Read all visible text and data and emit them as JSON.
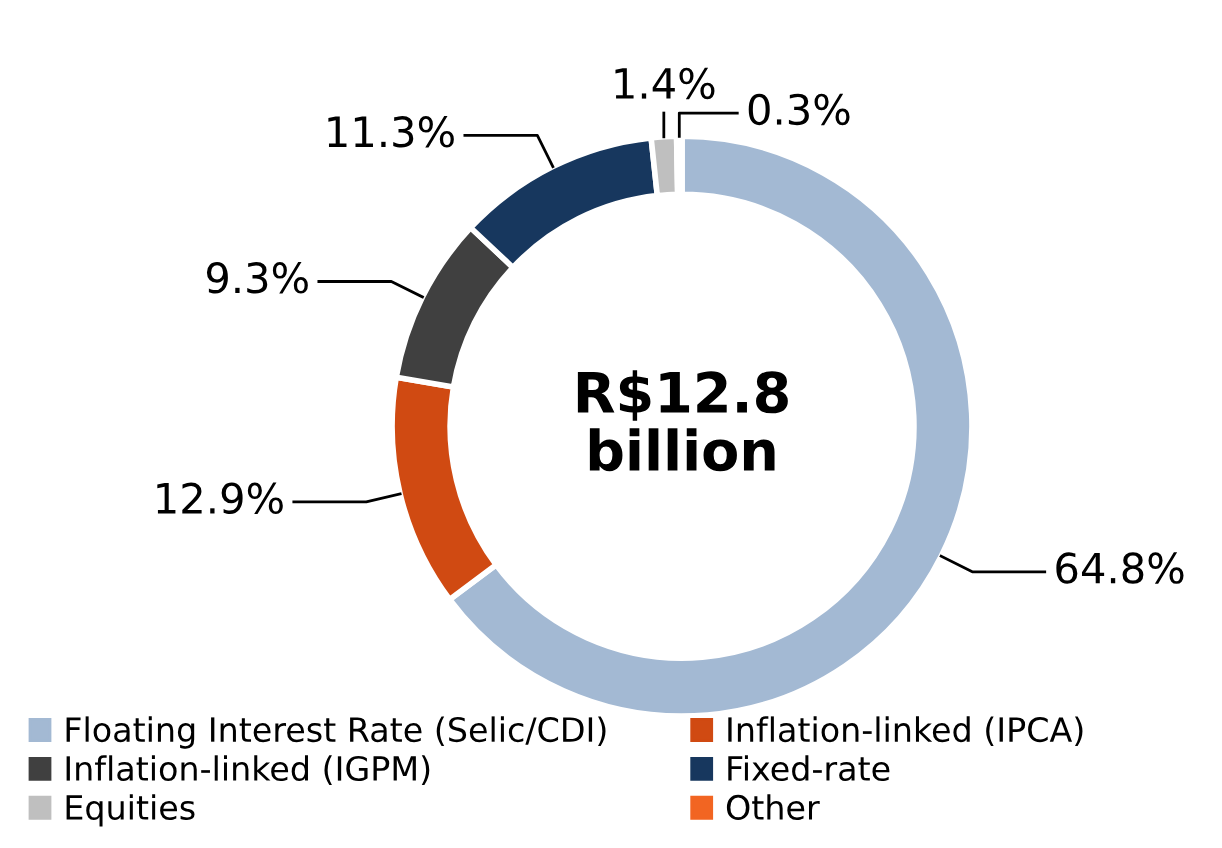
{
  "chart_data": {
    "type": "donut",
    "categories": [
      "Floating Interest Rate (Selic/CDI)",
      "Inflation-linked (IPCA)",
      "Inflation-linked (IGPM)",
      "Fixed-rate",
      "Equities",
      "Other"
    ],
    "values": [
      64.8,
      12.9,
      9.3,
      11.3,
      1.4,
      0.3
    ],
    "colors": [
      "#a3b9d3",
      "#d04a12",
      "#404040",
      "#17375e",
      "#bfbfbf",
      "#f26522"
    ],
    "value_labels": [
      "64.8%",
      "12.9%",
      "9.3%",
      "11.3%",
      "1.4%",
      "0.3%"
    ],
    "annotations": [
      "R$12.8 billion"
    ],
    "legend": "bottom"
  }
}
